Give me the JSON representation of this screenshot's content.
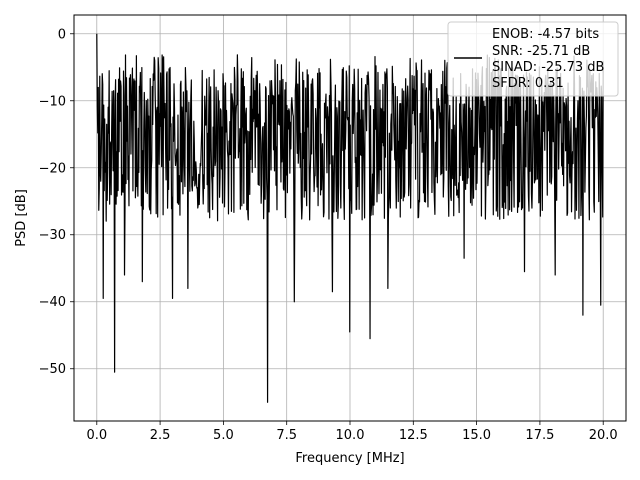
{
  "chart_data": {
    "type": "line",
    "title": "",
    "xlabel": "Frequency [MHz]",
    "ylabel": "PSD [dB]",
    "xlim": [
      -0.9,
      20.9
    ],
    "ylim": [
      -57.8,
      2.8
    ],
    "grid": true,
    "xticks": [
      0.0,
      2.5,
      5.0,
      7.5,
      10.0,
      12.5,
      15.0,
      17.5,
      20.0
    ],
    "xtick_labels": [
      "0.0",
      "2.5",
      "5.0",
      "7.5",
      "10.0",
      "12.5",
      "15.0",
      "17.5",
      "20.0"
    ],
    "yticks": [
      0,
      -10,
      -20,
      -30,
      -40,
      -50
    ],
    "ytick_labels": [
      "0",
      "−10",
      "−20",
      "−30",
      "−40",
      "−50"
    ],
    "legend": {
      "position": "top-right",
      "entries": [
        "ENOB: -4.57 bits",
        "SNR: -25.71 dB",
        "SINAD: -25.73 dB",
        "SFDR: 0.31"
      ]
    },
    "series": [
      {
        "color": "#000000",
        "x_start": 0.0,
        "x_end": 20.0,
        "n_points": 1024,
        "approx_band_top": -5,
        "approx_band_bottom": -28,
        "notable_points": [
          {
            "x": 0.0,
            "y": 0.0
          },
          {
            "x": 0.25,
            "y": -39.5
          },
          {
            "x": 0.7,
            "y": -50.5
          },
          {
            "x": 1.1,
            "y": -36
          },
          {
            "x": 1.8,
            "y": -37
          },
          {
            "x": 3.0,
            "y": -39.5
          },
          {
            "x": 3.6,
            "y": -38
          },
          {
            "x": 6.75,
            "y": -55
          },
          {
            "x": 7.8,
            "y": -40
          },
          {
            "x": 9.3,
            "y": -38.5
          },
          {
            "x": 10.0,
            "y": -44.5
          },
          {
            "x": 10.8,
            "y": -45.5
          },
          {
            "x": 11.5,
            "y": -38
          },
          {
            "x": 14.5,
            "y": -33.5
          },
          {
            "x": 16.9,
            "y": -35.5
          },
          {
            "x": 18.1,
            "y": -36
          },
          {
            "x": 19.2,
            "y": -42
          },
          {
            "x": 19.9,
            "y": -40.5
          }
        ]
      }
    ]
  }
}
